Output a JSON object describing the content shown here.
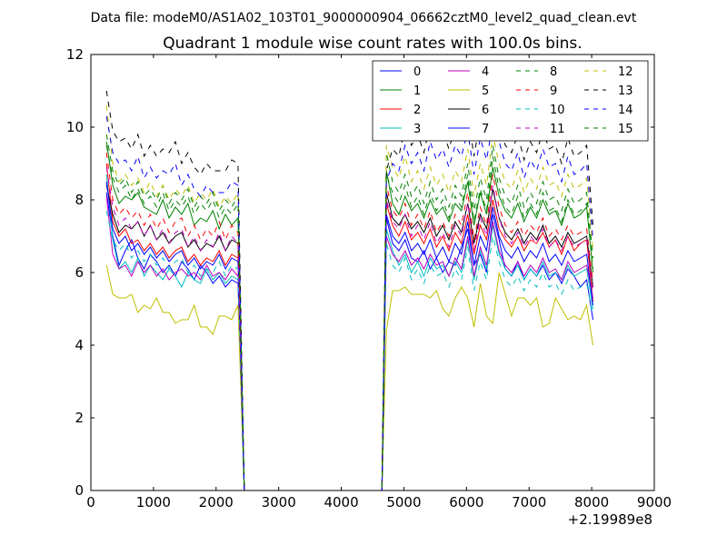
{
  "chart_data": {
    "type": "line",
    "suptitle": "Data file: modeM0/AS1A02_103T01_9000000904_06662cztM0_level2_quad_clean.evt",
    "title": "Quadrant 1 module wise count rates with 100.0s bins.",
    "xlabel": "",
    "ylabel": "",
    "x_offset_label": "+2.19989e8",
    "xlim": [
      0,
      9000
    ],
    "ylim": [
      0,
      12
    ],
    "xticks": [
      "0",
      "1000",
      "2000",
      "3000",
      "4000",
      "5000",
      "6000",
      "7000",
      "8000",
      "9000"
    ],
    "yticks": [
      "0",
      "2",
      "4",
      "6",
      "8",
      "10",
      "12"
    ],
    "grid": false,
    "legend_position": "top-right",
    "segment1_x": [
      250,
      350,
      450,
      550,
      650,
      750,
      850,
      950,
      1050,
      1150,
      1250,
      1350,
      1450,
      1550,
      1650,
      1750,
      1850,
      1950,
      2050,
      2150,
      2250,
      2350
    ],
    "segment2_x": [
      4720,
      4820,
      4920,
      5020,
      5120,
      5220,
      5320,
      5420,
      5520,
      5620,
      5720,
      5820,
      5920,
      6020,
      6120,
      6220,
      6320,
      6420,
      6520,
      6620,
      6720,
      6820,
      6920,
      7020,
      7120,
      7220,
      7320,
      7420,
      7520,
      7620,
      7720,
      7820,
      7920,
      8020
    ],
    "drop_x": [
      2450,
      2550
    ],
    "gap_x": [
      2550,
      4650
    ],
    "series": [
      {
        "name": "0",
        "color": "#0000ff",
        "dash": "solid",
        "values1": [
          8.2,
          7.0,
          6.2,
          6.6,
          6.9,
          6.4,
          6.1,
          6.5,
          6.3,
          6.0,
          6.2,
          5.9,
          6.3,
          6.1,
          5.8,
          6.2,
          6.0,
          5.7,
          5.9,
          5.6,
          5.8,
          5.7
        ],
        "values2": [
          7.5,
          6.8,
          6.6,
          6.9,
          6.4,
          6.3,
          6.6,
          6.1,
          6.4,
          6.0,
          6.3,
          6.2,
          6.7,
          7.2,
          6.2,
          6.5,
          6.0,
          7.6,
          6.9,
          6.1,
          5.9,
          6.3,
          5.8,
          6.1,
          5.9,
          6.2,
          5.8,
          6.0,
          5.7,
          6.1,
          5.9,
          5.6,
          5.8,
          4.7
        ]
      },
      {
        "name": "1",
        "color": "#008000",
        "dash": "solid",
        "values1": [
          9.6,
          8.4,
          7.9,
          8.1,
          8.0,
          8.2,
          7.8,
          7.7,
          7.6,
          8.0,
          7.5,
          7.8,
          7.6,
          7.9,
          7.3,
          7.5,
          7.4,
          7.7,
          7.2,
          7.6,
          7.3,
          7.5
        ],
        "values2": [
          8.8,
          7.9,
          7.6,
          8.1,
          7.7,
          7.9,
          7.5,
          8.0,
          7.6,
          7.8,
          7.4,
          7.9,
          7.7,
          8.5,
          7.3,
          8.2,
          7.6,
          8.9,
          8.1,
          7.7,
          7.5,
          7.9,
          7.4,
          7.8,
          7.5,
          8.0,
          7.6,
          7.7,
          7.3,
          7.9,
          7.5,
          7.6,
          7.8,
          6.0
        ]
      },
      {
        "name": "2",
        "color": "#ff0000",
        "dash": "solid",
        "values1": [
          9.0,
          7.4,
          7.0,
          7.2,
          6.8,
          6.9,
          6.6,
          6.8,
          6.5,
          6.7,
          6.4,
          6.6,
          6.7,
          6.3,
          6.5,
          6.2,
          6.4,
          6.3,
          6.6,
          6.2,
          6.5,
          6.4
        ],
        "values2": [
          7.9,
          7.3,
          7.0,
          7.4,
          6.9,
          7.1,
          6.8,
          7.2,
          6.7,
          7.0,
          6.6,
          7.1,
          6.8,
          7.6,
          6.5,
          7.3,
          6.9,
          8.0,
          7.2,
          6.9,
          6.7,
          7.0,
          6.6,
          6.9,
          6.8,
          7.1,
          6.7,
          6.9,
          6.5,
          7.0,
          6.6,
          6.8,
          6.9,
          5.2
        ]
      },
      {
        "name": "3",
        "color": "#00bfbf",
        "dash": "solid",
        "values1": [
          8.7,
          6.9,
          6.1,
          6.3,
          6.0,
          6.4,
          5.9,
          6.2,
          6.0,
          5.8,
          6.1,
          5.9,
          5.6,
          6.0,
          5.8,
          5.7,
          6.1,
          5.8,
          6.0,
          5.7,
          5.9,
          5.8
        ],
        "values2": [
          7.2,
          6.6,
          6.2,
          6.5,
          6.0,
          6.3,
          5.9,
          6.4,
          6.1,
          6.2,
          5.9,
          6.3,
          6.0,
          6.9,
          5.8,
          6.6,
          6.1,
          7.3,
          6.5,
          6.1,
          5.9,
          6.2,
          5.8,
          6.1,
          5.9,
          6.3,
          5.9,
          6.0,
          5.8,
          6.2,
          5.9,
          6.0,
          6.1,
          5.0
        ]
      },
      {
        "name": "4",
        "color": "#bf00bf",
        "dash": "solid",
        "values1": [
          8.1,
          6.5,
          6.1,
          6.2,
          5.9,
          6.3,
          6.0,
          6.2,
          5.9,
          6.1,
          5.8,
          6.0,
          6.1,
          5.9,
          6.0,
          5.8,
          6.2,
          5.9,
          6.0,
          5.8,
          6.1,
          5.9
        ],
        "values2": [
          7.0,
          6.5,
          6.3,
          6.6,
          6.2,
          6.4,
          6.1,
          6.5,
          6.2,
          6.3,
          5.9,
          6.4,
          6.1,
          7.0,
          5.9,
          6.7,
          6.2,
          7.4,
          6.6,
          6.2,
          6.0,
          6.3,
          5.9,
          6.2,
          6.0,
          6.4,
          6.0,
          6.1,
          5.8,
          6.3,
          6.0,
          6.1,
          6.2,
          5.3
        ]
      },
      {
        "name": "5",
        "color": "#bfbf00",
        "dash": "solid",
        "values1": [
          6.2,
          5.4,
          5.3,
          5.3,
          5.4,
          4.9,
          5.1,
          5.0,
          5.3,
          4.9,
          4.9,
          4.6,
          4.7,
          4.7,
          5.1,
          4.5,
          4.5,
          4.3,
          4.8,
          4.8,
          4.7,
          5.1
        ],
        "values2": [
          4.4,
          5.5,
          5.5,
          5.6,
          5.4,
          5.4,
          5.4,
          5.3,
          5.5,
          5.0,
          4.8,
          5.3,
          5.6,
          5.3,
          4.5,
          5.7,
          4.8,
          4.6,
          6.0,
          5.4,
          4.8,
          5.3,
          5.3,
          5.1,
          5.3,
          4.5,
          4.6,
          5.3,
          5.0,
          4.7,
          4.8,
          4.7,
          5.1,
          4.0
        ]
      },
      {
        "name": "6",
        "color": "#000000",
        "dash": "solid",
        "values1": [
          8.4,
          7.6,
          7.1,
          7.3,
          7.2,
          7.4,
          7.0,
          7.3,
          6.9,
          7.1,
          6.8,
          7.0,
          7.1,
          6.7,
          6.9,
          6.6,
          6.8,
          6.7,
          7.0,
          6.6,
          6.9,
          6.8
        ],
        "values2": [
          8.2,
          7.5,
          7.3,
          7.6,
          7.2,
          7.4,
          7.1,
          7.5,
          7.0,
          7.3,
          6.9,
          7.4,
          7.1,
          7.9,
          6.8,
          7.6,
          7.2,
          8.3,
          7.5,
          7.1,
          6.9,
          7.2,
          6.8,
          7.1,
          6.9,
          7.3,
          6.8,
          7.0,
          6.7,
          7.1,
          6.8,
          6.9,
          7.0,
          5.6
        ]
      },
      {
        "name": "7",
        "color": "#0000ff",
        "dash": "solid",
        "values1": [
          8.5,
          7.2,
          6.8,
          7.0,
          6.6,
          6.8,
          6.5,
          6.7,
          6.4,
          6.6,
          6.3,
          6.5,
          6.6,
          6.2,
          6.4,
          6.1,
          6.3,
          6.2,
          6.5,
          6.1,
          6.4,
          6.3
        ],
        "values2": [
          7.6,
          7.0,
          6.8,
          7.1,
          6.6,
          6.8,
          6.5,
          6.9,
          6.4,
          6.7,
          6.3,
          6.8,
          6.5,
          7.4,
          6.2,
          7.0,
          6.6,
          7.8,
          7.0,
          6.6,
          6.4,
          6.7,
          6.3,
          6.6,
          6.4,
          6.8,
          6.3,
          6.5,
          6.2,
          6.6,
          6.3,
          6.4,
          6.5,
          5.1
        ]
      },
      {
        "name": "8",
        "color": "#008000",
        "dash": "dash",
        "values1": [
          9.8,
          8.8,
          8.4,
          8.6,
          8.2,
          8.5,
          8.1,
          8.3,
          8.0,
          8.4,
          7.9,
          8.2,
          8.0,
          8.3,
          7.8,
          8.1,
          7.9,
          8.2,
          7.7,
          8.0,
          7.8,
          8.1
        ],
        "values2": [
          9.3,
          8.5,
          8.2,
          8.7,
          8.1,
          8.4,
          7.9,
          8.5,
          8.0,
          8.3,
          7.8,
          8.4,
          8.1,
          9.0,
          7.7,
          8.6,
          8.0,
          9.5,
          8.6,
          8.1,
          7.9,
          8.4,
          7.8,
          8.2,
          7.9,
          8.5,
          8.0,
          8.1,
          7.7,
          8.3,
          7.9,
          8.0,
          8.2,
          6.4
        ]
      },
      {
        "name": "9",
        "color": "#ff0000",
        "dash": "dash",
        "values1": [
          9.3,
          8.0,
          7.6,
          7.8,
          7.5,
          7.7,
          7.3,
          7.6,
          7.2,
          7.5,
          7.1,
          7.4,
          7.5,
          7.0,
          7.3,
          6.9,
          7.2,
          7.0,
          7.4,
          6.9,
          7.3,
          7.1
        ],
        "values2": [
          8.4,
          7.7,
          7.5,
          7.9,
          7.3,
          7.6,
          7.2,
          7.7,
          7.1,
          7.4,
          7.0,
          7.6,
          7.3,
          8.2,
          6.9,
          7.8,
          7.3,
          8.7,
          7.8,
          7.3,
          7.1,
          7.4,
          7.0,
          7.3,
          7.1,
          7.5,
          7.0,
          7.2,
          6.9,
          7.3,
          7.0,
          7.1,
          7.2,
          5.7
        ]
      },
      {
        "name": "10",
        "color": "#00bfbf",
        "dash": "dash",
        "values1": [
          7.7,
          6.9,
          6.6,
          6.8,
          6.4,
          6.6,
          6.3,
          6.5,
          6.2,
          6.4,
          6.1,
          6.3,
          6.4,
          6.0,
          6.2,
          5.9,
          6.1,
          6.0,
          6.3,
          5.9,
          6.2,
          6.1
        ],
        "values2": [
          6.8,
          6.2,
          6.0,
          6.4,
          5.8,
          6.1,
          5.7,
          6.2,
          5.9,
          6.0,
          5.6,
          6.1,
          5.8,
          6.7,
          5.5,
          6.3,
          5.8,
          7.0,
          6.3,
          5.8,
          5.6,
          5.9,
          5.5,
          5.8,
          5.6,
          6.0,
          5.6,
          5.7,
          5.4,
          5.8,
          5.5,
          5.6,
          5.7,
          4.8
        ]
      },
      {
        "name": "11",
        "color": "#bf00bf",
        "dash": "dash",
        "values1": [
          8.9,
          7.8,
          7.3,
          7.5,
          7.2,
          7.4,
          7.0,
          7.3,
          6.9,
          7.2,
          6.8,
          7.1,
          7.2,
          6.7,
          7.0,
          6.6,
          6.9,
          6.7,
          7.1,
          6.6,
          7.0,
          6.8
        ],
        "values2": [
          8.0,
          7.4,
          7.2,
          7.6,
          7.0,
          7.3,
          6.9,
          7.4,
          6.8,
          7.1,
          6.7,
          7.3,
          7.0,
          7.9,
          6.6,
          7.5,
          7.0,
          8.4,
          7.5,
          7.0,
          6.8,
          7.1,
          6.7,
          7.0,
          6.8,
          7.2,
          6.7,
          6.9,
          6.6,
          7.0,
          6.7,
          6.8,
          6.9,
          5.5
        ]
      },
      {
        "name": "12",
        "color": "#bfbf00",
        "dash": "dash",
        "values1": [
          10.6,
          9.0,
          8.5,
          8.7,
          8.4,
          8.6,
          8.2,
          8.5,
          8.1,
          8.4,
          8.0,
          8.3,
          8.1,
          8.4,
          7.9,
          8.2,
          8.0,
          8.3,
          7.8,
          8.1,
          7.9,
          8.2
        ],
        "values2": [
          9.5,
          8.9,
          8.6,
          9.2,
          8.5,
          8.8,
          8.3,
          8.9,
          8.4,
          8.7,
          8.2,
          8.8,
          8.5,
          9.4,
          8.1,
          9.0,
          8.4,
          9.8,
          9.0,
          8.5,
          8.3,
          8.8,
          8.2,
          8.6,
          8.3,
          8.9,
          8.4,
          8.5,
          8.1,
          8.7,
          8.3,
          8.4,
          8.6,
          6.6
        ]
      },
      {
        "name": "13",
        "color": "#000000",
        "dash": "dash",
        "values1": [
          11.0,
          9.9,
          9.6,
          9.7,
          9.4,
          9.8,
          9.2,
          9.5,
          9.2,
          9.4,
          9.3,
          9.6,
          9.0,
          9.3,
          8.9,
          8.7,
          9.0,
          8.8,
          8.8,
          8.8,
          9.1,
          9.0
        ],
        "values2": [
          8.8,
          9.4,
          9.2,
          10.0,
          9.5,
          9.8,
          9.3,
          10.1,
          9.6,
          9.9,
          9.4,
          10.0,
          9.7,
          10.4,
          9.2,
          10.2,
          9.6,
          10.5,
          10.1,
          9.5,
          9.3,
          9.8,
          9.1,
          9.6,
          9.3,
          9.9,
          9.4,
          9.5,
          9.0,
          9.7,
          9.2,
          9.3,
          9.5,
          7.3
        ]
      },
      {
        "name": "14",
        "color": "#0000ff",
        "dash": "dash",
        "values1": [
          10.3,
          9.3,
          9.0,
          9.1,
          8.8,
          9.2,
          8.6,
          8.9,
          8.6,
          8.8,
          8.7,
          9.0,
          8.4,
          8.7,
          8.3,
          8.1,
          8.4,
          8.2,
          8.2,
          8.2,
          8.5,
          8.4
        ],
        "values2": [
          8.5,
          9.0,
          8.8,
          9.5,
          9.0,
          9.3,
          8.8,
          9.6,
          9.1,
          9.4,
          8.9,
          9.5,
          9.2,
          9.9,
          8.7,
          9.7,
          9.1,
          10.1,
          9.6,
          9.0,
          8.8,
          9.3,
          8.6,
          9.1,
          8.8,
          9.4,
          8.9,
          9.0,
          8.5,
          9.2,
          8.7,
          8.8,
          9.0,
          6.9
        ]
      },
      {
        "name": "15",
        "color": "#008000",
        "dash": "dash",
        "values1": [
          9.5,
          8.6,
          8.2,
          8.4,
          8.0,
          8.3,
          7.9,
          8.1,
          7.8,
          8.2,
          7.7,
          8.0,
          7.8,
          8.1,
          7.6,
          7.9,
          7.7,
          8.0,
          7.5,
          7.8,
          7.6,
          7.9
        ],
        "values2": [
          8.7,
          8.2,
          7.9,
          8.4,
          7.8,
          8.1,
          7.6,
          8.2,
          7.7,
          8.0,
          7.5,
          8.1,
          7.8,
          8.7,
          7.4,
          8.3,
          7.7,
          9.2,
          8.3,
          7.8,
          7.6,
          8.1,
          7.5,
          7.9,
          7.6,
          8.2,
          7.7,
          7.8,
          7.4,
          8.0,
          7.6,
          7.7,
          7.9,
          6.1
        ]
      }
    ]
  }
}
